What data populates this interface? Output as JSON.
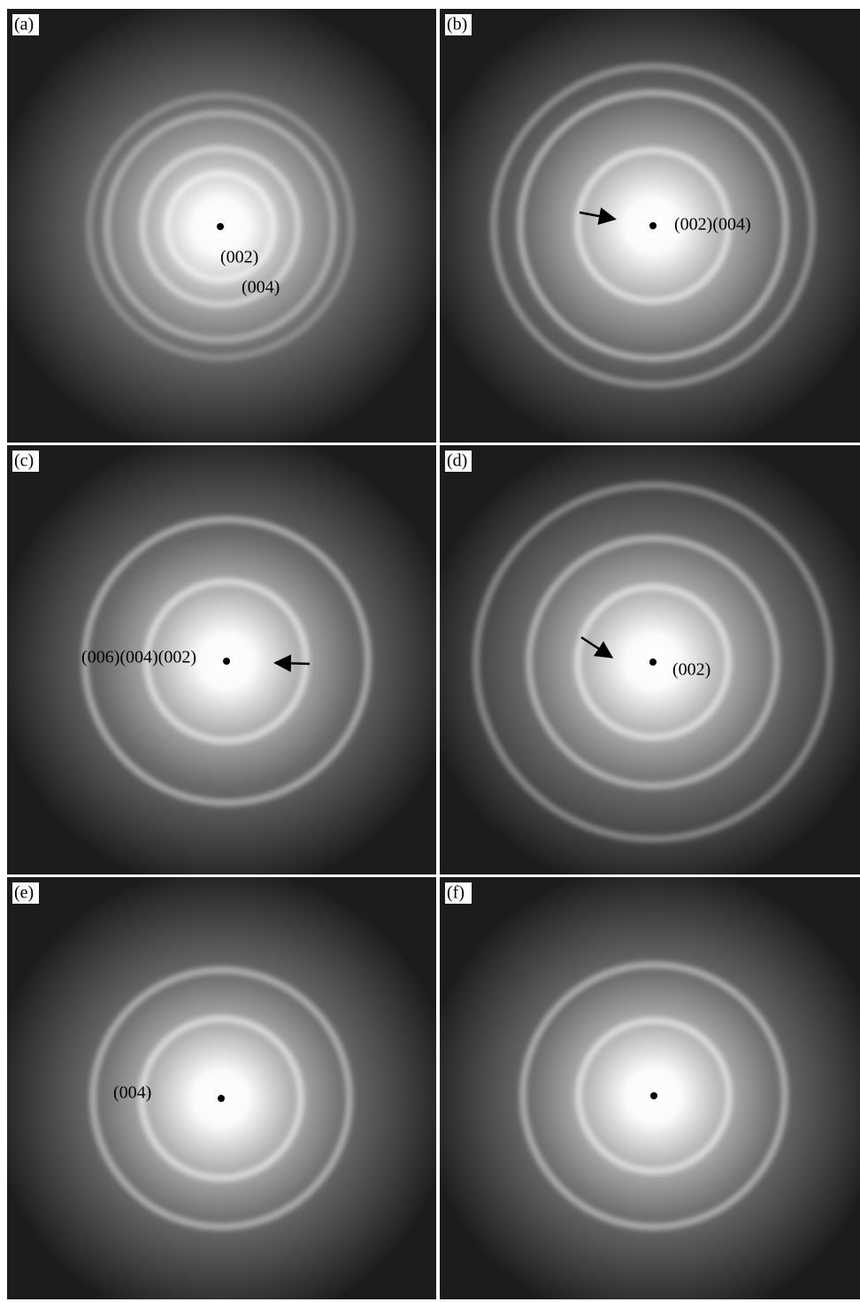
{
  "panels": [
    {
      "label": "(a)",
      "annotations": [
        "(002)",
        "(004)"
      ]
    },
    {
      "label": "(b)",
      "annotations": [
        "(002)(004)"
      ]
    },
    {
      "label": "(c)",
      "annotations": [
        "(006)(004)(002)"
      ]
    },
    {
      "label": "(d)",
      "annotations": [
        "(002)"
      ]
    },
    {
      "label": "(e)",
      "annotations": [
        "(004)"
      ]
    },
    {
      "label": "(f)",
      "annotations": []
    }
  ]
}
